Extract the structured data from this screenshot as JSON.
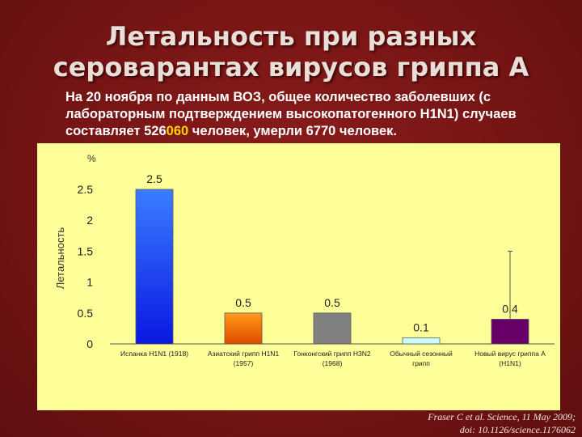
{
  "slide": {
    "title_line1": "Летальность при  разных",
    "title_line2": "сероварантах вирусов гриппа А",
    "note_part1": "На 20 ноября по данным ВОЗ, общее количество заболевших (с лабораторным подтверждением высокопатогенного H1N1) случаев составляет 526",
    "note_highlight": "060",
    "note_part2": " человек, умерли 6770 человек.",
    "citation_line1": "Fraser C et al. Science, 11 May 2009;",
    "citation_line2": "doi: 10.1126/science.1176062"
  },
  "chart_data": {
    "type": "bar",
    "ylabel": "Летальность",
    "yunit": "%",
    "ylim": [
      0,
      2.5
    ],
    "yticks": [
      "0",
      "0.5",
      "1",
      "1.5",
      "2",
      "2.5"
    ],
    "categories": [
      [
        "Испанка H1N1 (1918)"
      ],
      [
        "Азиатский грипп H1N1",
        "(1957)"
      ],
      [
        "Гонконгский грипп H3N2",
        "(1968)"
      ],
      [
        "Обычный сезонный",
        "грипп"
      ],
      [
        "Новый вирус гриппа А",
        "(H1N1)"
      ]
    ],
    "values": [
      2.5,
      0.5,
      0.5,
      0.1,
      0.4
    ],
    "value_labels": [
      "2.5",
      "0.5",
      "0.5",
      "0.1",
      "0.4"
    ],
    "bar_colors": [
      "#2255ee",
      "#ee6600",
      "#808080",
      "#ccffff",
      "#660066"
    ],
    "error_bar": {
      "category_index": 4,
      "upper": 1.5
    },
    "grid": false
  }
}
